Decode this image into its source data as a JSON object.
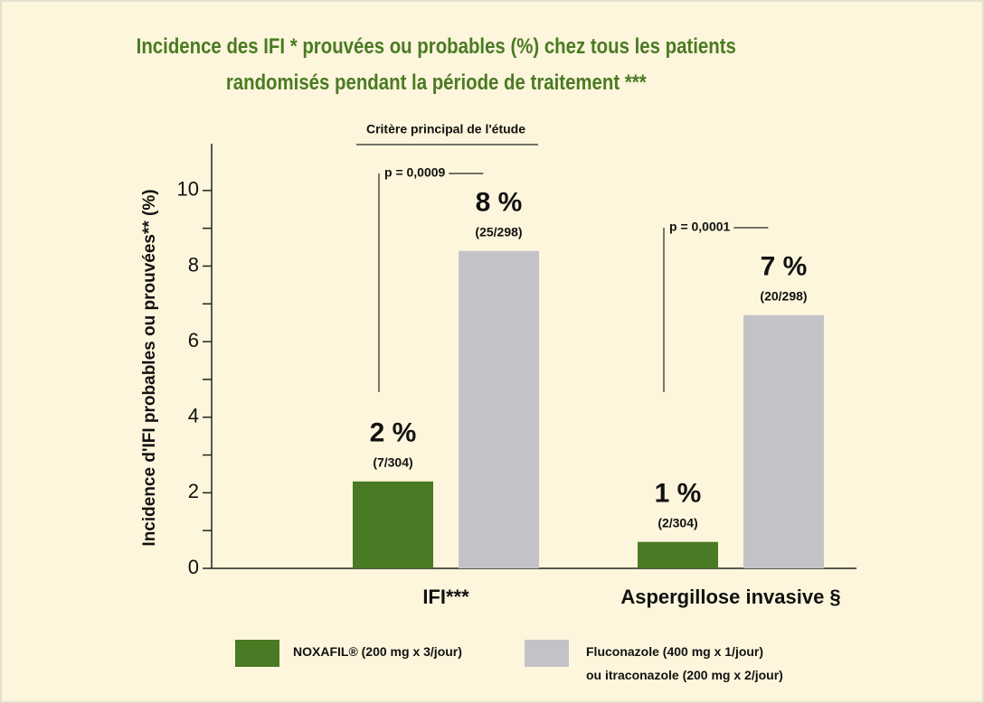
{
  "chart_data": {
    "type": "bar",
    "title": "Incidence des IFI *    prouvées ou probables (%) chez tous les patients\nrandomisés pendant la période de traitement ***",
    "ylabel": "Incidence d'IFI probables ou prouvées** (%)",
    "annotation": "Critère principal de l'étude",
    "categories": [
      "IFI***",
      "Aspergillose invasive §"
    ],
    "p_values": [
      "p = 0,0009",
      "p = 0,0001"
    ],
    "series": [
      {
        "name": "NOXAFIL® (200 mg x 3/jour)",
        "color": "#4a7a23",
        "values": [
          2.3,
          0.7
        ],
        "value_labels": [
          "2 %",
          "1 %"
        ],
        "fractions": [
          "(7/304)",
          "(2/304)"
        ]
      },
      {
        "name": "Fluconazole (400 mg x 1/jour)\nou itraconazole (200 mg x 2/jour)",
        "color": "#c3c3c7",
        "values": [
          8.4,
          6.7
        ],
        "value_labels": [
          "8 %",
          "7 %"
        ],
        "fractions": [
          "(25/298)",
          "(20/298)"
        ]
      }
    ],
    "ylim": [
      0,
      11
    ],
    "yticks": [
      0,
      2,
      4,
      6,
      8,
      10
    ],
    "yminorticks": [
      1,
      3,
      5,
      7,
      9
    ]
  }
}
